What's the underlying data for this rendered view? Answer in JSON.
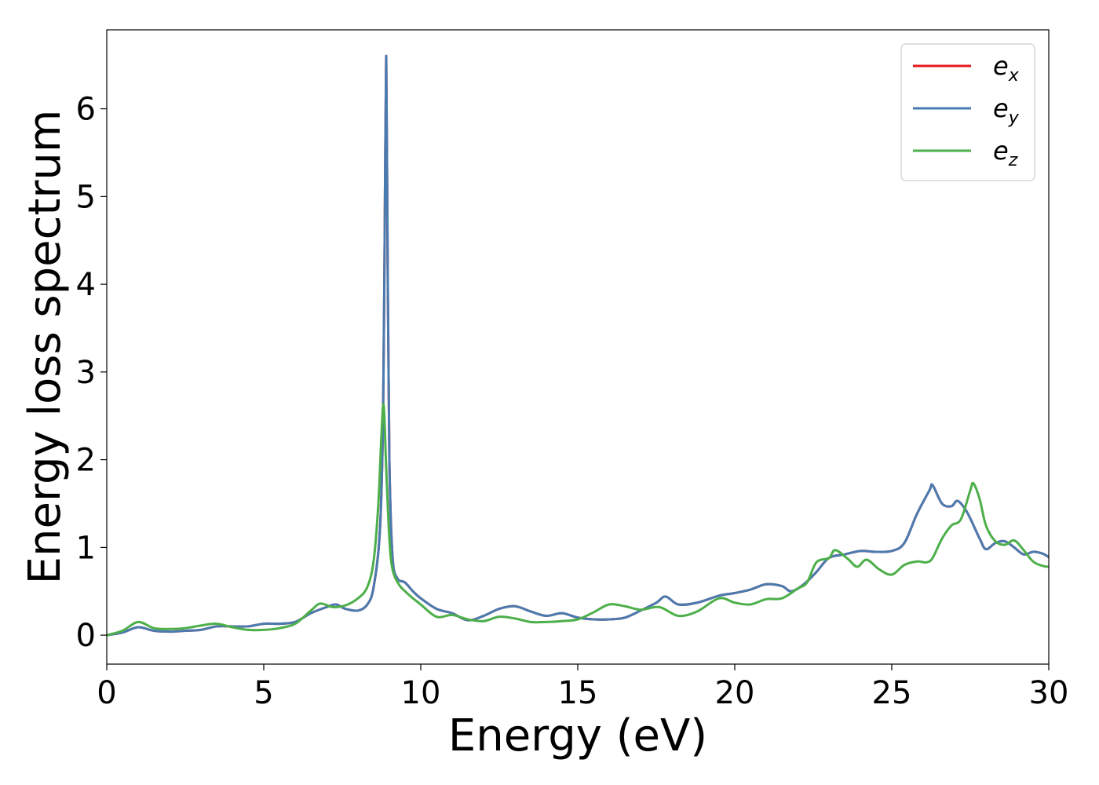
{
  "chart_data": {
    "type": "line",
    "title": "",
    "xlabel": "Energy (eV)",
    "ylabel": "Energy loss spectrum",
    "xlim": [
      0,
      30
    ],
    "ylim": [
      -0.33,
      6.9
    ],
    "xticks": [
      "0",
      "5",
      "10",
      "15",
      "20",
      "25",
      "30"
    ],
    "yticks": [
      "0",
      "1",
      "2",
      "3",
      "4",
      "5",
      "6"
    ],
    "grid": false,
    "legend_position": "top-right",
    "series": [
      {
        "name": "e_x",
        "legend_base": "e",
        "legend_sub": "x",
        "color": "#e41a1c",
        "x": [
          0,
          0.5,
          1.0,
          1.5,
          2.0,
          2.5,
          3.0,
          3.5,
          4.0,
          4.5,
          5.0,
          5.5,
          6.0,
          6.5,
          7.0,
          7.3,
          7.6,
          8.0,
          8.3,
          8.5,
          8.7,
          8.8,
          8.85,
          8.9,
          8.95,
          9.0,
          9.1,
          9.25,
          9.5,
          9.75,
          10.0,
          10.5,
          11.0,
          11.5,
          12.0,
          12.5,
          13.0,
          13.5,
          14.0,
          14.5,
          15.0,
          15.5,
          16.0,
          16.5,
          17.0,
          17.5,
          17.8,
          18.2,
          18.8,
          19.5,
          20.0,
          20.5,
          21.0,
          21.5,
          21.8,
          22.2,
          22.6,
          23.0,
          23.5,
          24.0,
          24.5,
          25.0,
          25.4,
          25.8,
          26.2,
          26.3,
          26.6,
          26.9,
          27.1,
          27.4,
          27.8,
          28.0,
          28.3,
          28.6,
          28.9,
          29.2,
          29.5,
          29.8,
          30.0
        ],
        "y": [
          0.0,
          0.03,
          0.09,
          0.05,
          0.04,
          0.05,
          0.06,
          0.1,
          0.1,
          0.1,
          0.13,
          0.13,
          0.15,
          0.25,
          0.32,
          0.35,
          0.3,
          0.28,
          0.35,
          0.55,
          1.2,
          2.5,
          4.5,
          6.6,
          4.0,
          2.0,
          0.9,
          0.65,
          0.6,
          0.5,
          0.42,
          0.3,
          0.25,
          0.17,
          0.22,
          0.3,
          0.33,
          0.27,
          0.22,
          0.25,
          0.2,
          0.18,
          0.18,
          0.2,
          0.28,
          0.37,
          0.44,
          0.35,
          0.37,
          0.45,
          0.48,
          0.52,
          0.58,
          0.56,
          0.5,
          0.58,
          0.72,
          0.88,
          0.92,
          0.96,
          0.95,
          0.96,
          1.05,
          1.38,
          1.65,
          1.71,
          1.5,
          1.47,
          1.53,
          1.4,
          1.1,
          0.98,
          1.05,
          1.07,
          1.0,
          0.92,
          0.95,
          0.93,
          0.89
        ]
      },
      {
        "name": "e_y",
        "legend_base": "e",
        "legend_sub": "y",
        "color": "#4a7bb0",
        "x": [
          0,
          0.5,
          1.0,
          1.5,
          2.0,
          2.5,
          3.0,
          3.5,
          4.0,
          4.5,
          5.0,
          5.5,
          6.0,
          6.5,
          7.0,
          7.3,
          7.6,
          8.0,
          8.3,
          8.5,
          8.7,
          8.8,
          8.85,
          8.9,
          8.95,
          9.0,
          9.1,
          9.25,
          9.5,
          9.75,
          10.0,
          10.5,
          11.0,
          11.5,
          12.0,
          12.5,
          13.0,
          13.5,
          14.0,
          14.5,
          15.0,
          15.5,
          16.0,
          16.5,
          17.0,
          17.5,
          17.8,
          18.2,
          18.8,
          19.5,
          20.0,
          20.5,
          21.0,
          21.5,
          21.8,
          22.2,
          22.6,
          23.0,
          23.5,
          24.0,
          24.5,
          25.0,
          25.4,
          25.8,
          26.2,
          26.3,
          26.6,
          26.9,
          27.1,
          27.4,
          27.8,
          28.0,
          28.3,
          28.6,
          28.9,
          29.2,
          29.5,
          29.8,
          30.0
        ],
        "y": [
          0.0,
          0.03,
          0.09,
          0.05,
          0.04,
          0.05,
          0.06,
          0.1,
          0.1,
          0.1,
          0.13,
          0.13,
          0.15,
          0.25,
          0.32,
          0.35,
          0.3,
          0.28,
          0.35,
          0.55,
          1.2,
          2.5,
          4.5,
          6.6,
          4.0,
          2.0,
          0.9,
          0.65,
          0.6,
          0.5,
          0.42,
          0.3,
          0.25,
          0.17,
          0.22,
          0.3,
          0.33,
          0.27,
          0.22,
          0.25,
          0.2,
          0.18,
          0.18,
          0.2,
          0.28,
          0.37,
          0.44,
          0.35,
          0.37,
          0.45,
          0.48,
          0.52,
          0.58,
          0.56,
          0.5,
          0.58,
          0.72,
          0.88,
          0.92,
          0.96,
          0.95,
          0.96,
          1.05,
          1.38,
          1.65,
          1.71,
          1.5,
          1.47,
          1.53,
          1.4,
          1.1,
          0.98,
          1.05,
          1.07,
          1.0,
          0.92,
          0.95,
          0.93,
          0.89
        ]
      },
      {
        "name": "e_z",
        "legend_base": "e",
        "legend_sub": "z",
        "color": "#4daf4a",
        "x": [
          0,
          0.5,
          1.0,
          1.5,
          2.0,
          2.5,
          3.0,
          3.5,
          4.0,
          4.5,
          5.0,
          5.5,
          6.0,
          6.5,
          6.8,
          7.2,
          7.6,
          8.0,
          8.3,
          8.5,
          8.65,
          8.75,
          8.82,
          8.9,
          9.0,
          9.1,
          9.3,
          9.5,
          9.75,
          10.0,
          10.5,
          11.0,
          11.5,
          12.0,
          12.5,
          13.0,
          13.5,
          14.0,
          14.5,
          15.0,
          15.5,
          16.0,
          16.5,
          17.0,
          17.6,
          18.2,
          18.8,
          19.5,
          20.0,
          20.5,
          21.0,
          21.5,
          22.0,
          22.3,
          22.6,
          23.0,
          23.2,
          23.6,
          23.9,
          24.2,
          24.6,
          25.0,
          25.4,
          25.8,
          26.1,
          26.3,
          26.6,
          26.9,
          27.2,
          27.5,
          27.6,
          27.8,
          28.0,
          28.3,
          28.6,
          28.9,
          29.2,
          29.5,
          29.8,
          30.0
        ],
        "y": [
          0.0,
          0.05,
          0.15,
          0.08,
          0.07,
          0.08,
          0.11,
          0.13,
          0.09,
          0.06,
          0.06,
          0.08,
          0.13,
          0.28,
          0.36,
          0.32,
          0.34,
          0.42,
          0.55,
          0.85,
          1.5,
          2.3,
          2.62,
          1.9,
          1.1,
          0.75,
          0.58,
          0.5,
          0.42,
          0.35,
          0.21,
          0.23,
          0.18,
          0.16,
          0.21,
          0.19,
          0.15,
          0.15,
          0.16,
          0.18,
          0.26,
          0.35,
          0.33,
          0.29,
          0.32,
          0.22,
          0.27,
          0.42,
          0.37,
          0.35,
          0.41,
          0.42,
          0.53,
          0.6,
          0.83,
          0.88,
          0.97,
          0.87,
          0.78,
          0.86,
          0.75,
          0.69,
          0.8,
          0.84,
          0.83,
          0.88,
          1.1,
          1.25,
          1.32,
          1.65,
          1.73,
          1.55,
          1.25,
          1.07,
          1.03,
          1.08,
          0.97,
          0.84,
          0.79,
          0.78
        ]
      }
    ]
  }
}
